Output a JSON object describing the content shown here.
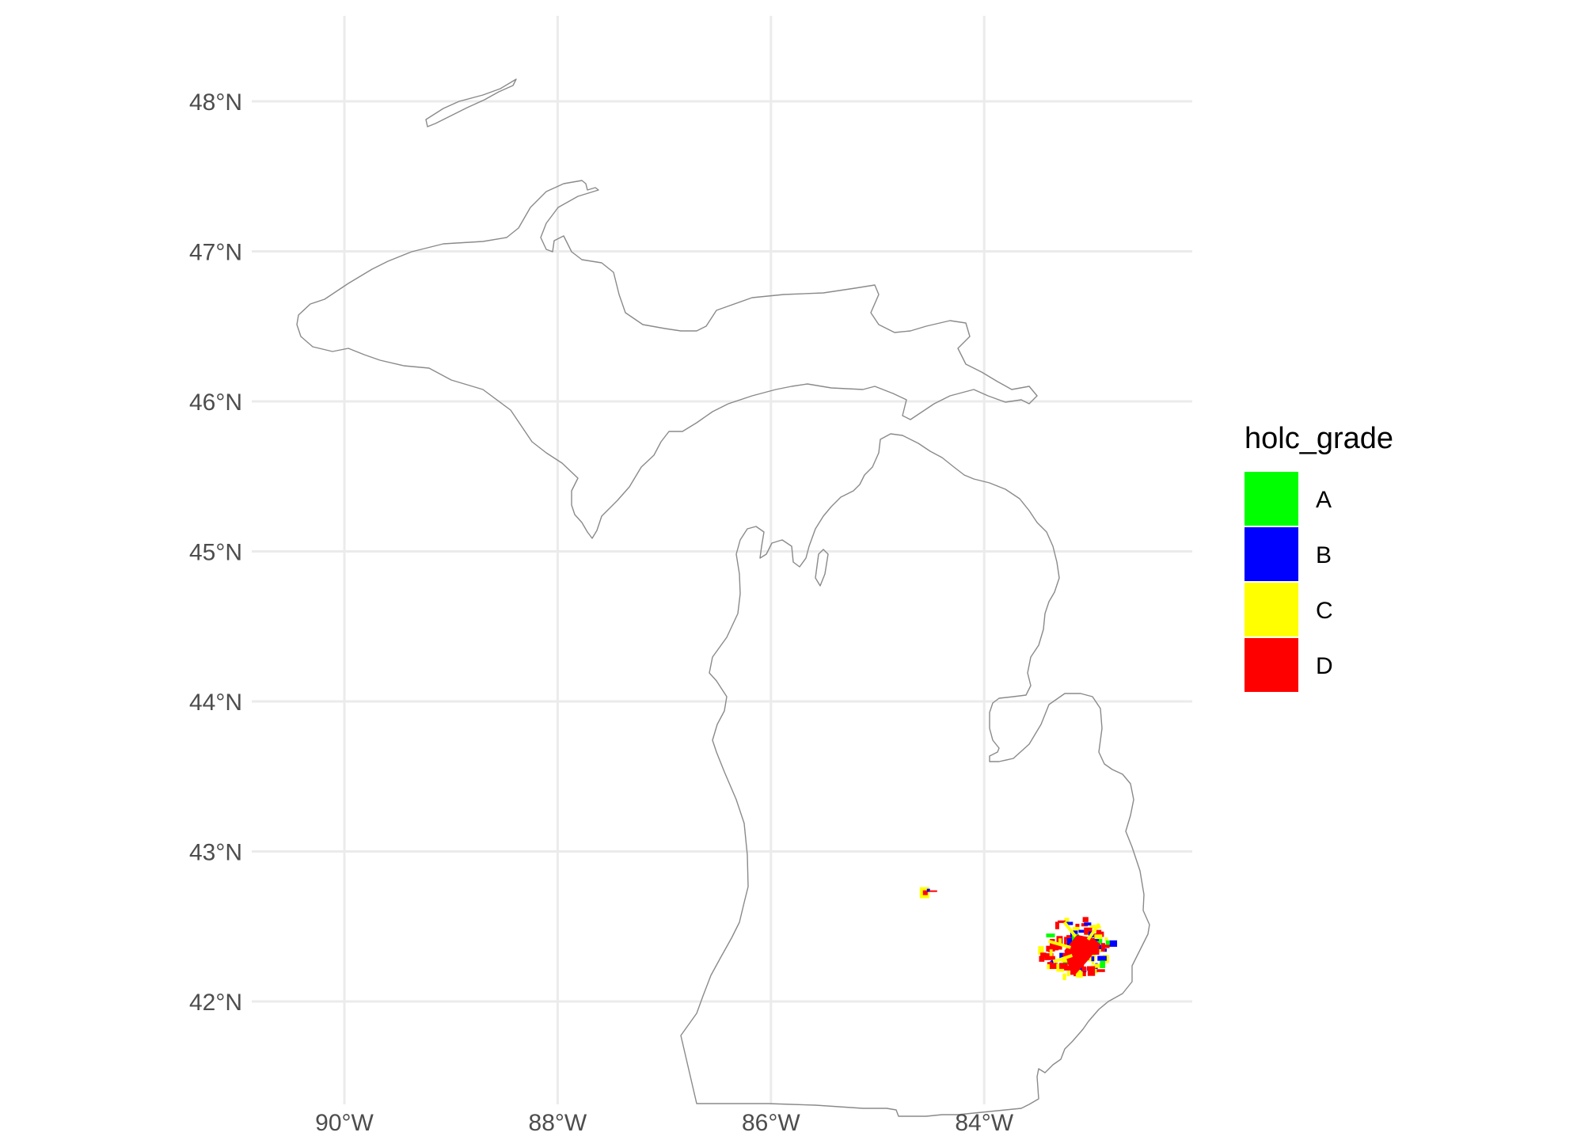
{
  "chart_data": {
    "type": "map",
    "region": "Michigan",
    "x_ticks": [
      {
        "value": -90,
        "label": "90°W"
      },
      {
        "value": -88,
        "label": "88°W"
      },
      {
        "value": -86,
        "label": "86°W"
      },
      {
        "value": -84,
        "label": "84°W"
      }
    ],
    "y_ticks": [
      {
        "value": 48,
        "label": "48°N"
      },
      {
        "value": 47,
        "label": "47°N"
      },
      {
        "value": 46,
        "label": "46°N"
      },
      {
        "value": 45,
        "label": "45°N"
      },
      {
        "value": 44,
        "label": "44°N"
      },
      {
        "value": 43,
        "label": "43°N"
      },
      {
        "value": 42,
        "label": "42°N"
      }
    ],
    "legend": {
      "title": "holc_grade",
      "items": [
        {
          "label": "A",
          "color": "#00ff00"
        },
        {
          "label": "B",
          "color": "#0000ff"
        },
        {
          "label": "C",
          "color": "#ffff00"
        },
        {
          "label": "D",
          "color": "#ff0000"
        }
      ]
    },
    "cities": [
      {
        "name_hidden": "",
        "lon": -84.56,
        "lat": 42.73,
        "grades": [
          "C",
          "D",
          "B"
        ]
      },
      {
        "name_hidden": "",
        "lon": -83.1,
        "lat": 42.37,
        "grades": [
          "A",
          "B",
          "C",
          "D"
        ]
      }
    ]
  }
}
